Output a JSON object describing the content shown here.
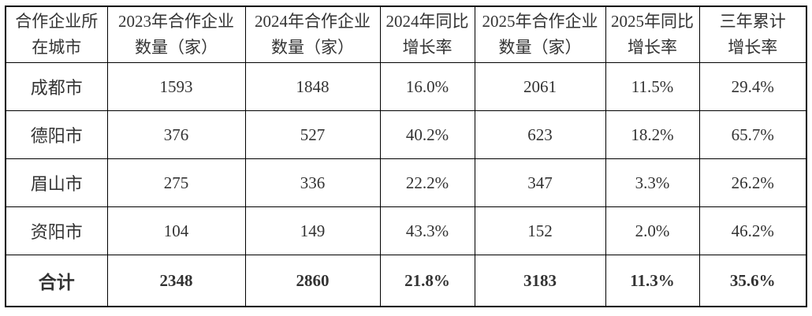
{
  "table": {
    "headers": [
      "合作企业所\n在城市",
      "2023年合作企业\n数量（家）",
      "2024年合作企业\n数量（家）",
      "2024年同比\n增长率",
      "2025年合作企业\n数量（家）",
      "2025年同比\n增长率",
      "三年累计\n增长率"
    ],
    "rows": [
      {
        "city": "成都市",
        "count_2023": "1593",
        "count_2024": "1848",
        "growth_2024": "16.0%",
        "count_2025": "2061",
        "growth_2025": "11.5%",
        "growth_3yr": "29.4%"
      },
      {
        "city": "德阳市",
        "count_2023": "376",
        "count_2024": "527",
        "growth_2024": "40.2%",
        "count_2025": "623",
        "growth_2025": "18.2%",
        "growth_3yr": "65.7%"
      },
      {
        "city": "眉山市",
        "count_2023": "275",
        "count_2024": "336",
        "growth_2024": "22.2%",
        "count_2025": "347",
        "growth_2025": "3.3%",
        "growth_3yr": "26.2%"
      },
      {
        "city": "资阳市",
        "count_2023": "104",
        "count_2024": "149",
        "growth_2024": "43.3%",
        "count_2025": "152",
        "growth_2025": "2.0%",
        "growth_3yr": "46.2%"
      }
    ],
    "total": {
      "city": "合计",
      "count_2023": "2348",
      "count_2024": "2860",
      "growth_2024": "21.8%",
      "count_2025": "3183",
      "growth_2025": "11.3%",
      "growth_3yr": "35.6%"
    },
    "colors": {
      "border": "#000000",
      "text": "#333333",
      "background": "#ffffff"
    }
  }
}
